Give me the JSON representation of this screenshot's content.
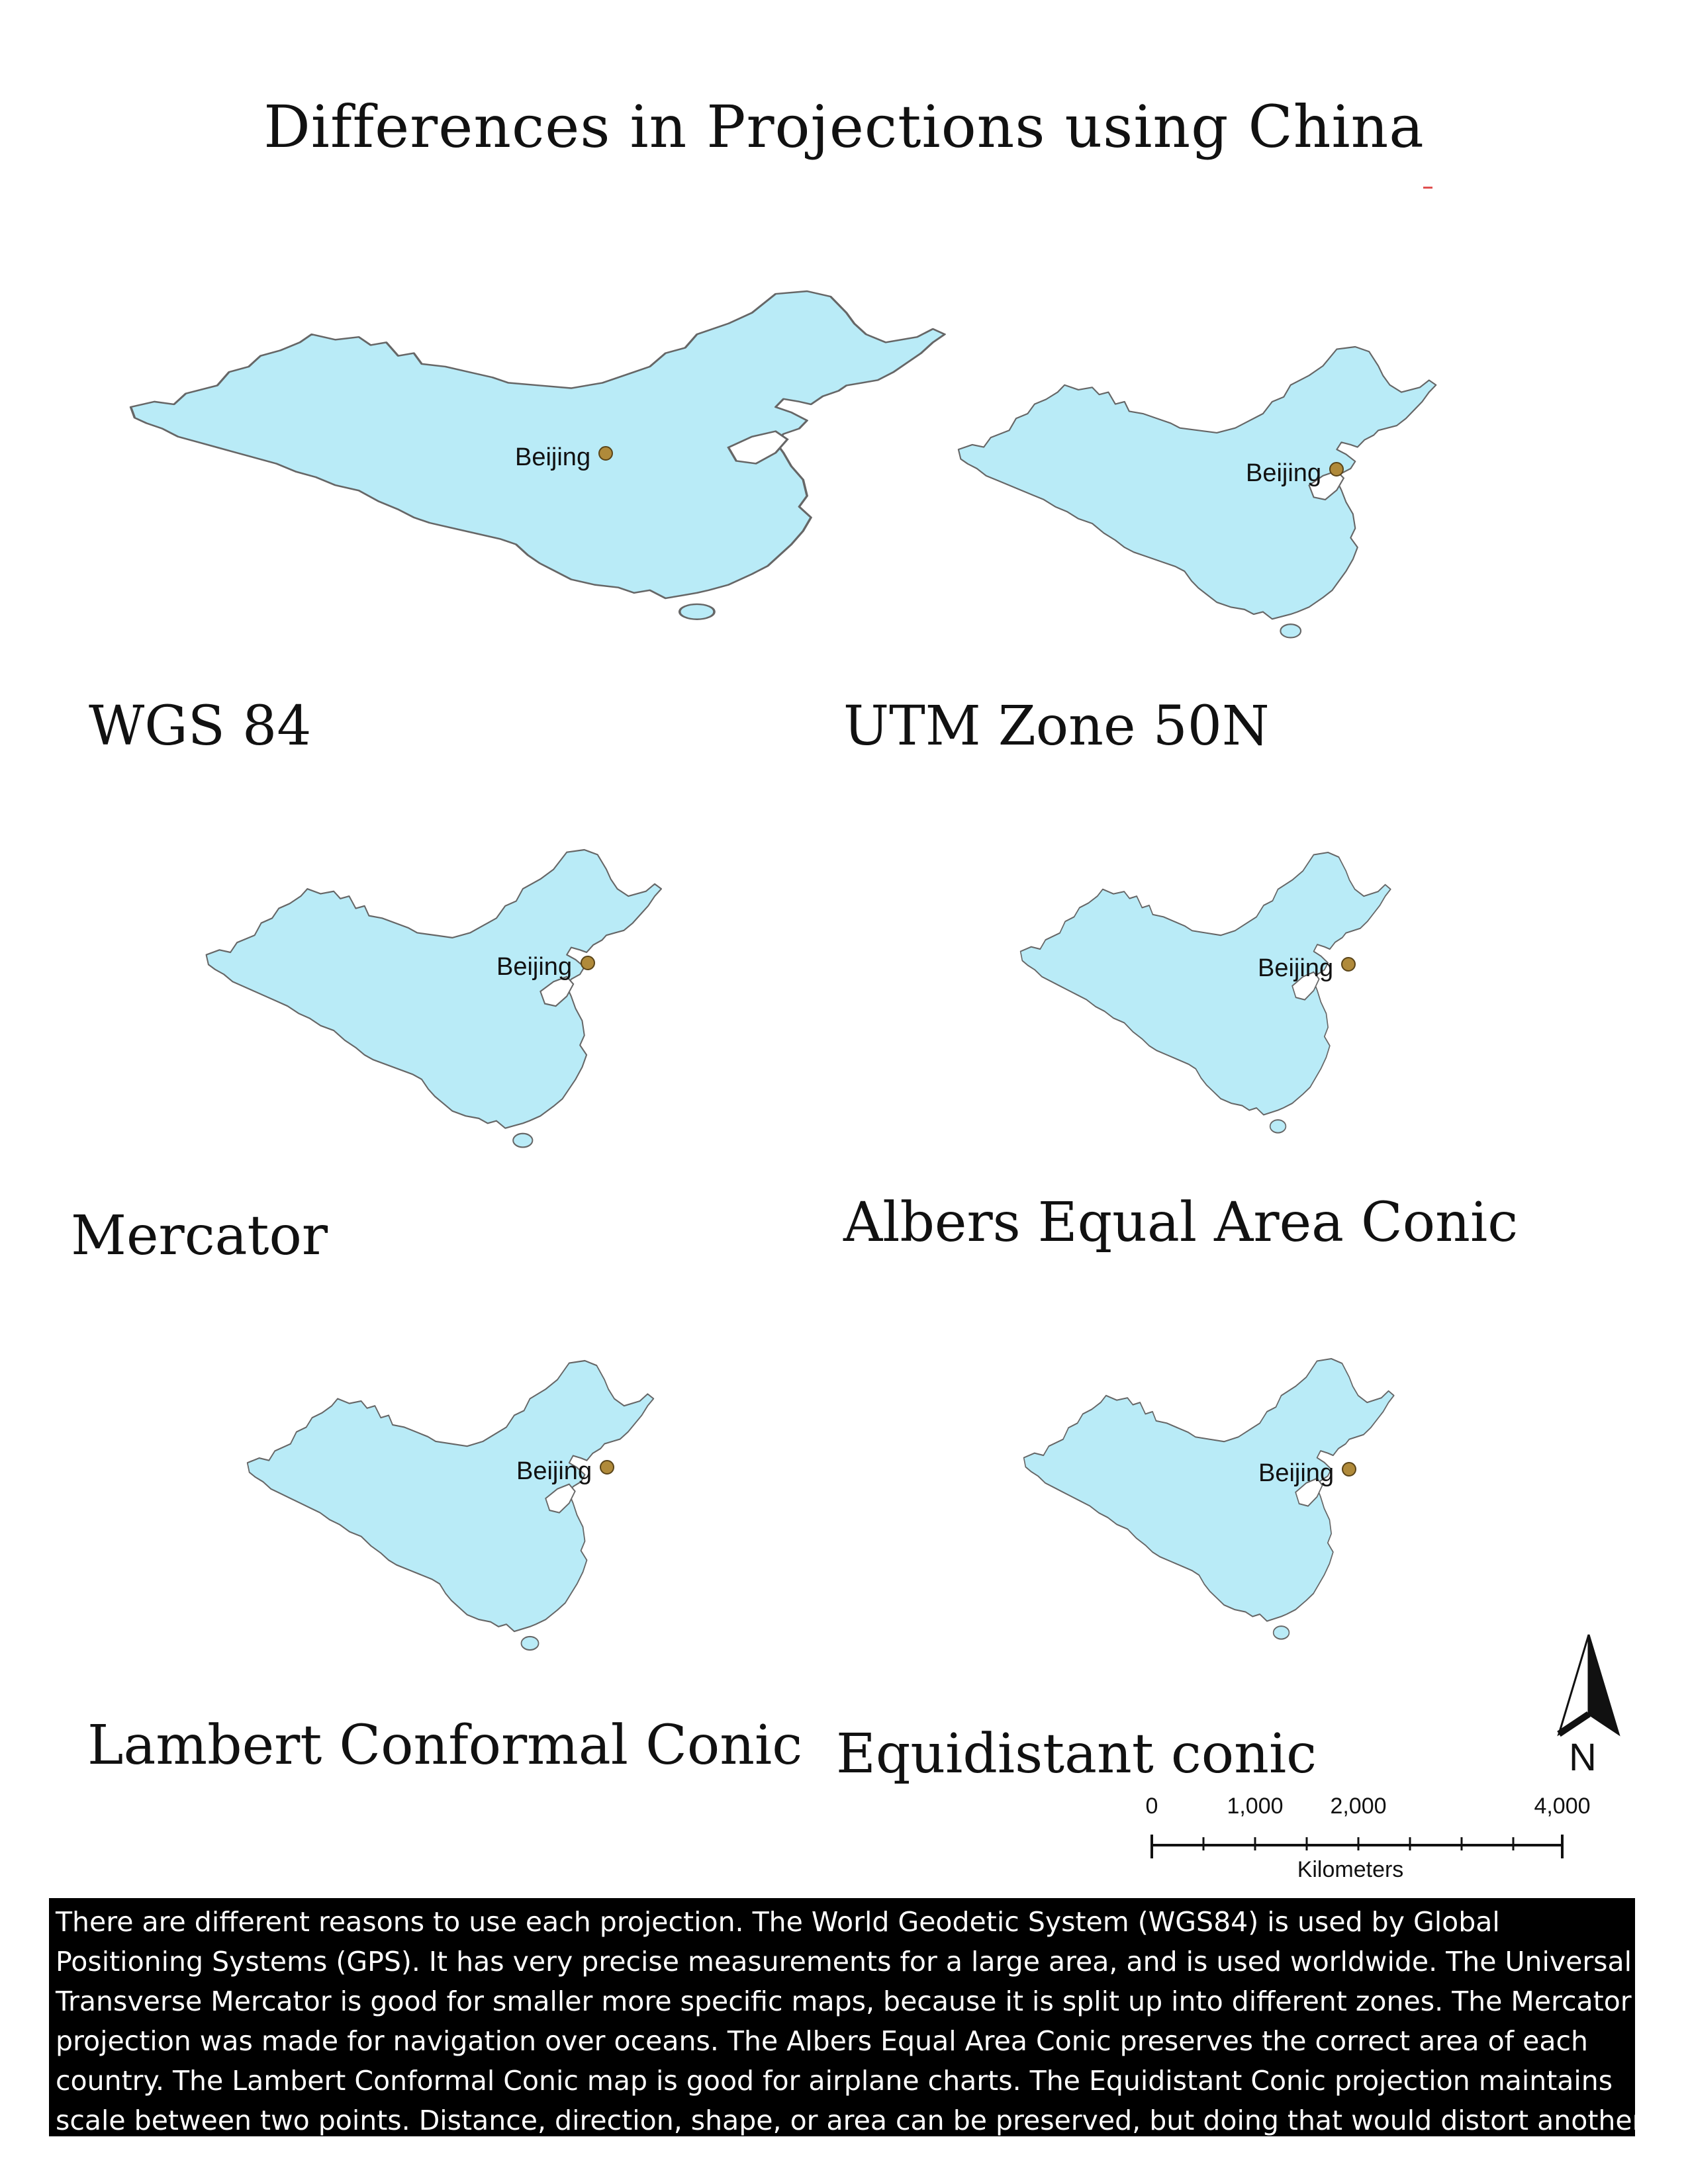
{
  "title": "Differences in Projections using China",
  "map_colors": {
    "land": "#b9ebf7",
    "outline": "#666666",
    "city": "#b08a3a"
  },
  "city_name": "Beijing",
  "panels": [
    {
      "projection": "WGS 84"
    },
    {
      "projection": "UTM Zone 50N"
    },
    {
      "projection": "Mercator"
    },
    {
      "projection": "Albers Equal Area Conic"
    },
    {
      "projection": "Lambert Conformal Conic"
    },
    {
      "projection": "Equidistant conic"
    }
  ],
  "north_arrow": {
    "letter": "N",
    "icon": "north-arrow-icon"
  },
  "scale_bar": {
    "tick_labels": [
      "0",
      "1,000",
      "2,000",
      "4,000"
    ],
    "unit": "Kilometers"
  },
  "description": [
    "There are different reasons to use each projection. The World Geodetic System (WGS84) is used by Global",
    "Positioning Systems (GPS). It has very precise measurements for a large area, and is used worldwide. The Universal",
    "Transverse Mercator is good for smaller more specific maps, because it is split up into different zones. The Mercator",
    "projection was made for navigation over oceans. The Albers Equal Area Conic preserves the correct area of each",
    "country. The Lambert Conformal Conic map is good for airplane charts. The Equidistant Conic projection maintains",
    "scale between two points. Distance, direction, shape, or area can be preserved, but doing that would distort another."
  ]
}
